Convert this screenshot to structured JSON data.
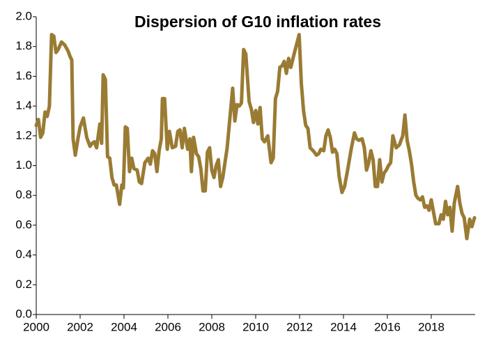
{
  "chart_data": {
    "type": "line",
    "title": "Dispersion of G10 inflation rates",
    "xlim": [
      2000,
      2020
    ],
    "xticks": [
      2000,
      2002,
      2004,
      2006,
      2008,
      2010,
      2012,
      2014,
      2016,
      2018
    ],
    "ylim": [
      0,
      2
    ],
    "yticks": [
      {
        "value": 0,
        "label": "0.0"
      },
      0.2,
      0.4,
      0.6,
      0.8,
      {
        "value": 1,
        "label": "1.0"
      },
      1.2,
      1.4,
      1.6,
      1.8,
      {
        "value": 2,
        "label": "2.0"
      }
    ],
    "grid": false,
    "x": [
      2000.0,
      2000.1,
      2000.2,
      2000.3,
      2000.4,
      2000.5,
      2000.6,
      2000.7,
      2000.8,
      2000.9,
      2001.0,
      2001.15,
      2001.3,
      2001.45,
      2001.55,
      2001.62,
      2001.68,
      2001.78,
      2001.9,
      2002.0,
      2002.15,
      2002.3,
      2002.45,
      2002.55,
      2002.65,
      2002.75,
      2002.9,
      2002.98,
      2003.05,
      2003.15,
      2003.25,
      2003.35,
      2003.45,
      2003.55,
      2003.65,
      2003.8,
      2003.9,
      2003.97,
      2004.06,
      2004.15,
      2004.25,
      2004.35,
      2004.45,
      2004.6,
      2004.7,
      2004.8,
      2004.95,
      2005.1,
      2005.2,
      2005.3,
      2005.4,
      2005.5,
      2005.6,
      2005.7,
      2005.75,
      2005.85,
      2005.97,
      2006.07,
      2006.2,
      2006.35,
      2006.45,
      2006.55,
      2006.65,
      2006.75,
      2006.9,
      2007.0,
      2007.07,
      2007.17,
      2007.3,
      2007.4,
      2007.5,
      2007.6,
      2007.7,
      2007.8,
      2007.9,
      2008.0,
      2008.1,
      2008.2,
      2008.3,
      2008.4,
      2008.5,
      2008.7,
      2008.95,
      2009.05,
      2009.15,
      2009.25,
      2009.35,
      2009.45,
      2009.55,
      2009.7,
      2009.8,
      2009.9,
      2010.0,
      2010.1,
      2010.2,
      2010.3,
      2010.4,
      2010.55,
      2010.7,
      2010.8,
      2010.9,
      2011.0,
      2011.1,
      2011.2,
      2011.3,
      2011.4,
      2011.5,
      2011.6,
      2011.75,
      2011.98,
      2012.08,
      2012.18,
      2012.28,
      2012.38,
      2012.48,
      2012.62,
      2012.77,
      2012.87,
      2012.97,
      2013.1,
      2013.2,
      2013.3,
      2013.4,
      2013.5,
      2013.6,
      2013.7,
      2013.8,
      2013.93,
      2014.05,
      2014.2,
      2014.35,
      2014.5,
      2014.6,
      2014.7,
      2014.85,
      2014.95,
      2015.05,
      2015.15,
      2015.25,
      2015.35,
      2015.45,
      2015.55,
      2015.65,
      2015.75,
      2015.85,
      2015.95,
      2016.05,
      2016.15,
      2016.25,
      2016.4,
      2016.55,
      2016.7,
      2016.8,
      2016.9,
      2017.0,
      2017.1,
      2017.2,
      2017.3,
      2017.4,
      2017.5,
      2017.6,
      2017.7,
      2017.8,
      2017.9,
      2018.0,
      2018.1,
      2018.2,
      2018.35,
      2018.45,
      2018.55,
      2018.65,
      2018.75,
      2018.85,
      2018.95,
      2019.05,
      2019.2,
      2019.3,
      2019.4,
      2019.5,
      2019.62,
      2019.75,
      2019.85,
      2019.97
    ],
    "series": [
      {
        "name": "Dispersion",
        "color": "#9a7b34",
        "values": [
          1.27,
          1.31,
          1.19,
          1.22,
          1.36,
          1.33,
          1.4,
          1.88,
          1.87,
          1.76,
          1.78,
          1.83,
          1.81,
          1.77,
          1.73,
          1.71,
          1.18,
          1.07,
          1.18,
          1.26,
          1.32,
          1.19,
          1.13,
          1.15,
          1.16,
          1.12,
          1.28,
          1.15,
          1.61,
          1.58,
          1.06,
          1.05,
          0.92,
          0.87,
          0.87,
          0.74,
          0.87,
          0.85,
          1.26,
          1.25,
          0.96,
          1.05,
          0.98,
          0.97,
          0.89,
          0.88,
          1.02,
          1.05,
          1.01,
          1.1,
          1.08,
          0.96,
          1.1,
          1.18,
          1.45,
          1.45,
          1.11,
          1.23,
          1.12,
          1.13,
          1.23,
          1.24,
          1.12,
          1.25,
          1.11,
          1.18,
          0.96,
          1.19,
          1.08,
          1.06,
          0.98,
          0.83,
          0.83,
          1.09,
          1.12,
          0.97,
          0.92,
          1.0,
          1.04,
          0.86,
          0.92,
          1.12,
          1.52,
          1.3,
          1.41,
          1.4,
          1.42,
          1.78,
          1.75,
          1.43,
          1.38,
          1.29,
          1.37,
          1.28,
          1.39,
          1.18,
          1.16,
          1.2,
          1.02,
          1.05,
          1.45,
          1.5,
          1.66,
          1.67,
          1.7,
          1.62,
          1.72,
          1.66,
          1.75,
          1.88,
          1.55,
          1.37,
          1.27,
          1.25,
          1.12,
          1.1,
          1.07,
          1.08,
          1.11,
          1.1,
          1.2,
          1.24,
          1.19,
          1.09,
          1.11,
          1.08,
          0.93,
          0.82,
          0.86,
          0.98,
          1.11,
          1.22,
          1.18,
          1.17,
          1.18,
          1.12,
          0.97,
          1.02,
          1.1,
          1.04,
          0.86,
          0.86,
          1.04,
          0.89,
          0.95,
          0.97,
          1.0,
          1.02,
          1.2,
          1.12,
          1.14,
          1.2,
          1.34,
          1.17,
          1.1,
          1.01,
          0.89,
          0.8,
          0.78,
          0.77,
          0.79,
          0.72,
          0.73,
          0.7,
          0.77,
          0.69,
          0.61,
          0.61,
          0.67,
          0.64,
          0.76,
          0.67,
          0.72,
          0.56,
          0.75,
          0.86,
          0.75,
          0.68,
          0.65,
          0.51,
          0.64,
          0.59,
          0.65
        ]
      }
    ]
  }
}
